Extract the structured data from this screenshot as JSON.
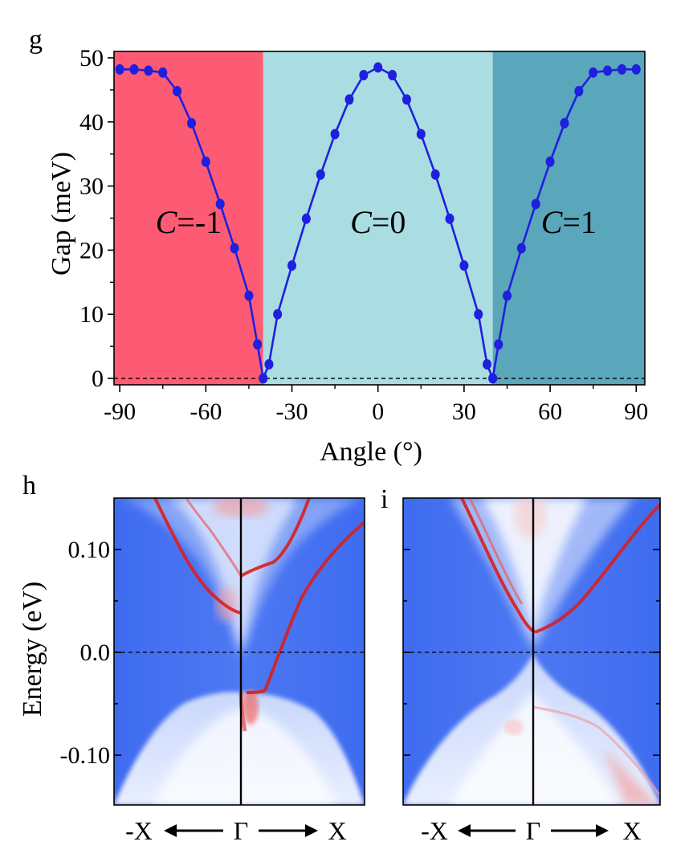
{
  "chart_data": [
    {
      "panel_label": "g",
      "type": "line",
      "xlabel": "Angle (°)",
      "ylabel": "Gap (meV)",
      "xlim": [
        -92,
        93
      ],
      "ylim": [
        -1,
        51
      ],
      "x_ticks": [
        -90,
        -60,
        -30,
        0,
        30,
        60,
        90
      ],
      "y_ticks": [
        0,
        10,
        20,
        30,
        40,
        50
      ],
      "regions": [
        {
          "x_start": -92,
          "x_end": -40,
          "color": "#fc5b73",
          "label_italic": "C",
          "label_rest": "=-1"
        },
        {
          "x_start": -40,
          "x_end": 40,
          "color": "#a9dde1",
          "label_italic": "C",
          "label_rest": "=0"
        },
        {
          "x_start": 40,
          "x_end": 93,
          "color": "#5aa6ba",
          "label_italic": "C",
          "label_rest": "=1"
        }
      ],
      "reference_line_y": 0,
      "series": [
        {
          "color": "#1f1fe0",
          "x": [
            -90,
            -85,
            -80,
            -75,
            -70,
            -65,
            -60,
            -55,
            -50,
            -45,
            -42,
            -40,
            -38,
            -35,
            -30,
            -25,
            -20,
            -15,
            -10,
            -5,
            0,
            5,
            10,
            15,
            20,
            25,
            30,
            35,
            38,
            40,
            42,
            45,
            50,
            55,
            60,
            65,
            70,
            75,
            80,
            85,
            90
          ],
          "y": [
            48.2,
            48.2,
            48.0,
            47.7,
            44.8,
            39.8,
            33.8,
            27.2,
            20.3,
            12.9,
            5.3,
            0,
            2.2,
            10.0,
            17.6,
            24.9,
            31.8,
            38.1,
            43.5,
            47.3,
            48.5,
            47.3,
            43.5,
            38.1,
            31.8,
            24.9,
            17.6,
            10.0,
            2.2,
            0,
            5.3,
            12.9,
            20.3,
            27.2,
            33.8,
            39.8,
            44.8,
            47.7,
            48.0,
            48.2,
            48.2
          ]
        }
      ]
    },
    {
      "panel_label": "h",
      "type": "heatmap",
      "ylabel": "Energy (eV)",
      "y_ticks": [
        "0.10",
        "0.0",
        "-0.10"
      ],
      "x_labels": {
        "left": "-X",
        "center": "Γ",
        "right": "X"
      },
      "colormap": [
        "#3b67ee",
        "#ffffff",
        "#dc1e1e"
      ]
    },
    {
      "panel_label": "i",
      "type": "heatmap",
      "x_labels": {
        "left": "-X",
        "center": "Γ",
        "right": "X"
      },
      "colormap": [
        "#3b67ee",
        "#ffffff",
        "#dc1e1e"
      ]
    }
  ]
}
